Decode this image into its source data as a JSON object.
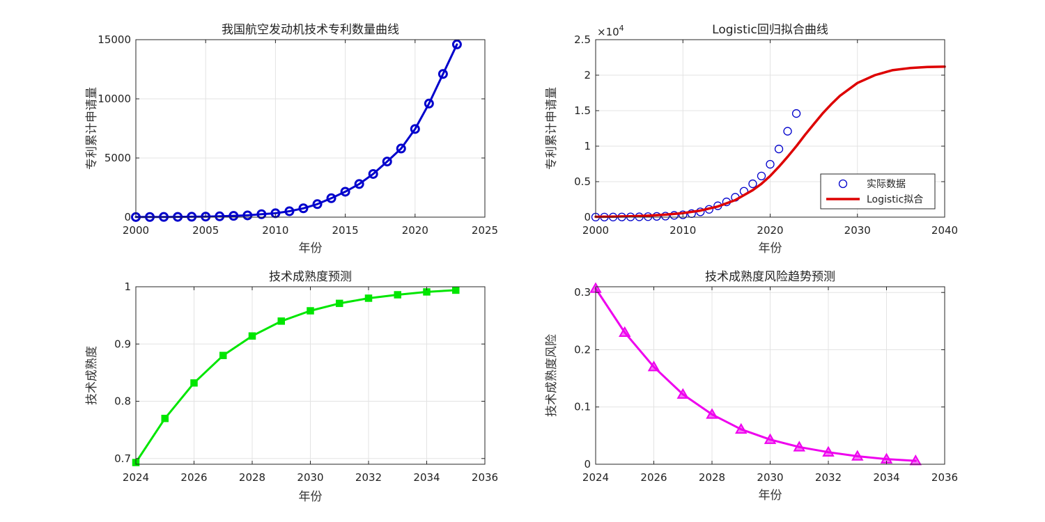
{
  "chart_data": [
    {
      "type": "line",
      "title": "我国航空发动机技术专利数量曲线",
      "xlabel": "年份",
      "ylabel": "专利累计申请量",
      "xlim": [
        2000,
        2025
      ],
      "ylim": [
        0,
        15000
      ],
      "xticks": [
        2000,
        2005,
        2010,
        2015,
        2020,
        2025
      ],
      "yticks": [
        0,
        5000,
        10000,
        15000
      ],
      "grid": true,
      "color": "#0000CC",
      "marker": "circle",
      "x": [
        2000,
        2001,
        2002,
        2003,
        2004,
        2005,
        2006,
        2007,
        2008,
        2009,
        2010,
        2011,
        2012,
        2013,
        2014,
        2015,
        2016,
        2017,
        2018,
        2019,
        2020,
        2021,
        2022,
        2023
      ],
      "series": [
        {
          "values": [
            10,
            15,
            20,
            25,
            35,
            45,
            70,
            110,
            150,
            250,
            330,
            500,
            750,
            1100,
            1600,
            2150,
            2800,
            3650,
            4700,
            5800,
            7450,
            9600,
            12100,
            14600
          ]
        }
      ]
    },
    {
      "type": "line",
      "title": "Logistic回归拟合曲线",
      "xlabel": "年份",
      "ylabel": "专利累计申请量",
      "xlim": [
        2000,
        2040
      ],
      "ylim": [
        0,
        2.5
      ],
      "y_multiplier": "×10",
      "y_multiplier_exp": "4",
      "xticks": [
        2000,
        2010,
        2020,
        2030,
        2040
      ],
      "yticks": [
        0,
        0.5,
        1,
        1.5,
        2,
        2.5
      ],
      "grid": true,
      "legend_position": "bottom-right",
      "series": [
        {
          "name": "实际数据",
          "style": "scatter",
          "color": "#0000CC",
          "x": [
            2000,
            2001,
            2002,
            2003,
            2004,
            2005,
            2006,
            2007,
            2008,
            2009,
            2010,
            2011,
            2012,
            2013,
            2014,
            2015,
            2016,
            2017,
            2018,
            2019,
            2020,
            2021,
            2022,
            2023
          ],
          "values": [
            0.001,
            0.0015,
            0.002,
            0.0025,
            0.0035,
            0.0045,
            0.007,
            0.011,
            0.015,
            0.025,
            0.033,
            0.05,
            0.075,
            0.11,
            0.16,
            0.215,
            0.28,
            0.365,
            0.47,
            0.58,
            0.745,
            0.96,
            1.21,
            1.46
          ]
        },
        {
          "name": "Logistic拟合",
          "style": "line",
          "color": "#DD0000",
          "x": [
            2000,
            2002,
            2004,
            2006,
            2008,
            2010,
            2012,
            2014,
            2016,
            2018,
            2019,
            2020,
            2021,
            2022,
            2023,
            2024,
            2025,
            2026,
            2027,
            2028,
            2030,
            2032,
            2034,
            2036,
            2038,
            2040
          ],
          "values": [
            0.005,
            0.008,
            0.013,
            0.021,
            0.035,
            0.057,
            0.092,
            0.15,
            0.24,
            0.38,
            0.47,
            0.58,
            0.71,
            0.85,
            1.0,
            1.16,
            1.31,
            1.46,
            1.59,
            1.71,
            1.89,
            2.0,
            2.07,
            2.1,
            2.115,
            2.12
          ]
        }
      ]
    },
    {
      "type": "line",
      "title": "技术成熟度预测",
      "xlabel": "",
      "ylabel": "技术成熟度",
      "xlim": [
        2024,
        2036
      ],
      "ylim": [
        0.69,
        1.0
      ],
      "xticks": [
        2024,
        2026,
        2028,
        2030,
        2032,
        2034,
        2036
      ],
      "yticks": [
        0.7,
        0.8,
        0.9,
        1
      ],
      "grid": true,
      "color": "#00E600",
      "marker": "square",
      "x": [
        2024,
        2025,
        2026,
        2027,
        2028,
        2029,
        2030,
        2031,
        2032,
        2033,
        2034,
        2035
      ],
      "series": [
        {
          "values": [
            0.693,
            0.77,
            0.832,
            0.88,
            0.914,
            0.94,
            0.958,
            0.971,
            0.98,
            0.986,
            0.991,
            0.994
          ]
        }
      ]
    },
    {
      "type": "line",
      "title": "技术成熟度风险趋势预测",
      "xlabel": "年份",
      "ylabel": "技术成熟度风险",
      "xlim": [
        2024,
        2036
      ],
      "ylim": [
        0,
        0.31
      ],
      "xticks": [
        2024,
        2026,
        2028,
        2030,
        2032,
        2034,
        2036
      ],
      "yticks": [
        0,
        0.1,
        0.2,
        0.3
      ],
      "grid": true,
      "color": "#EE00EE",
      "marker": "triangle",
      "x": [
        2024,
        2025,
        2026,
        2027,
        2028,
        2029,
        2030,
        2031,
        2032,
        2033,
        2034,
        2035
      ],
      "series": [
        {
          "values": [
            0.307,
            0.23,
            0.17,
            0.122,
            0.087,
            0.061,
            0.043,
            0.03,
            0.021,
            0.014,
            0.009,
            0.006
          ]
        }
      ]
    }
  ],
  "bottom_left_xlabel": "年份"
}
